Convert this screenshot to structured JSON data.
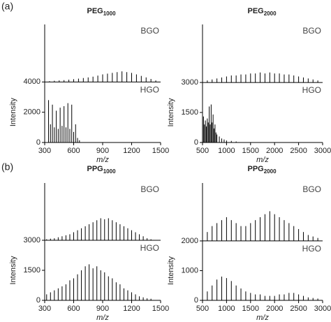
{
  "panel_labels": [
    "(a)",
    "(b)"
  ],
  "chart_data": [
    {
      "type": "spectrum",
      "title": "PEG",
      "title_subscript": "1000",
      "x_label": "m/z",
      "y_label": "Intensity",
      "xlim": [
        300,
        1500
      ],
      "xticks": [
        300,
        600,
        900,
        1200,
        1500
      ],
      "ylim": [
        0,
        7800
      ],
      "yticks": [
        0,
        2000,
        4000
      ],
      "series": [
        {
          "name": "BGO",
          "color": "#000000",
          "baseline": 4000,
          "x": [
            350,
            400,
            450,
            500,
            550,
            600,
            650,
            700,
            750,
            800,
            850,
            900,
            950,
            1000,
            1050,
            1100,
            1150,
            1200,
            1250,
            1300,
            1350,
            1400,
            1450
          ],
          "values": [
            4050,
            4080,
            4100,
            4120,
            4150,
            4180,
            4220,
            4260,
            4300,
            4350,
            4420,
            4500,
            4550,
            4600,
            4650,
            4700,
            4650,
            4600,
            4500,
            4400,
            4300,
            4200,
            4100
          ]
        },
        {
          "name": "HGO",
          "color": "#000000",
          "baseline": 0,
          "x": [
            340,
            360,
            380,
            400,
            420,
            440,
            460,
            480,
            500,
            520,
            540,
            560,
            580,
            600,
            620,
            640,
            660
          ],
          "values": [
            2800,
            1200,
            2500,
            1000,
            2100,
            900,
            2300,
            1100,
            2400,
            1000,
            2600,
            900,
            2500,
            700,
            1200,
            300,
            150
          ]
        }
      ]
    },
    {
      "type": "spectrum",
      "title": "PEG",
      "title_subscript": "2000",
      "x_label": "m/z",
      "y_label": "Intensity",
      "xlim": [
        500,
        3000
      ],
      "xticks": [
        500,
        1000,
        1500,
        2000,
        2500,
        3000
      ],
      "ylim": [
        0,
        5900
      ],
      "yticks": [
        0,
        1500,
        3000
      ],
      "series": [
        {
          "name": "BGO",
          "color": "#000000",
          "baseline": 3000,
          "x": [
            600,
            700,
            800,
            900,
            1000,
            1100,
            1200,
            1300,
            1400,
            1500,
            1600,
            1700,
            1800,
            1900,
            2000,
            2100,
            2200,
            2300,
            2400,
            2500,
            2600,
            2700,
            2800,
            2900
          ],
          "values": [
            3100,
            3150,
            3200,
            3250,
            3300,
            3350,
            3350,
            3400,
            3400,
            3450,
            3450,
            3500,
            3450,
            3500,
            3450,
            3450,
            3400,
            3400,
            3350,
            3300,
            3250,
            3200,
            3150,
            3100
          ]
        },
        {
          "name": "HGO",
          "color": "#000000",
          "baseline": 0,
          "x": [
            520,
            540,
            560,
            580,
            600,
            620,
            640,
            660,
            680,
            700,
            720,
            740,
            760,
            780,
            800,
            850,
            900,
            950,
            1000,
            1100,
            1200
          ],
          "values": [
            1300,
            900,
            1100,
            800,
            1200,
            1000,
            1800,
            900,
            1900,
            1000,
            1400,
            700,
            900,
            500,
            400,
            300,
            200,
            150,
            100,
            80,
            50
          ]
        }
      ]
    },
    {
      "type": "spectrum",
      "title": "PPG",
      "title_subscript": "1000",
      "x_label": "m/z",
      "y_label": "Intensity",
      "xlim": [
        300,
        1500
      ],
      "xticks": [
        300,
        600,
        900,
        1200,
        1500
      ],
      "ylim": [
        0,
        5860
      ],
      "yticks": [
        0,
        1500,
        3000
      ],
      "series": [
        {
          "name": "BGO",
          "color": "#000000",
          "baseline": 3000,
          "x": [
            320,
            360,
            400,
            440,
            480,
            520,
            560,
            600,
            640,
            680,
            720,
            760,
            800,
            840,
            880,
            920,
            960,
            1000,
            1040,
            1080,
            1120,
            1160,
            1200,
            1240,
            1280,
            1320,
            1360,
            1400
          ],
          "values": [
            3050,
            3080,
            3100,
            3150,
            3200,
            3250,
            3300,
            3400,
            3500,
            3600,
            3700,
            3800,
            3900,
            4000,
            4100,
            4050,
            4100,
            4000,
            3900,
            3800,
            3700,
            3600,
            3500,
            3400,
            3300,
            3200,
            3100,
            3050
          ]
        },
        {
          "name": "HGO",
          "color": "#000000",
          "baseline": 0,
          "x": [
            320,
            360,
            400,
            440,
            480,
            520,
            560,
            600,
            640,
            680,
            720,
            760,
            800,
            840,
            880,
            920,
            960,
            1000,
            1040,
            1080,
            1120,
            1160,
            1200,
            1240,
            1280,
            1320,
            1360,
            1400
          ],
          "values": [
            300,
            400,
            500,
            600,
            700,
            800,
            1000,
            1100,
            1300,
            1500,
            1700,
            1800,
            1600,
            1700,
            1500,
            1400,
            1200,
            1100,
            900,
            800,
            600,
            500,
            400,
            300,
            200,
            150,
            100,
            80
          ]
        }
      ]
    },
    {
      "type": "spectrum",
      "title": "PPG",
      "title_subscript": "2000",
      "x_label": "m/z",
      "y_label": "Intensity",
      "xlim": [
        500,
        3000
      ],
      "xticks": [
        500,
        1000,
        1500,
        2000,
        2500,
        3000
      ],
      "ylim": [
        0,
        3950
      ],
      "yticks": [
        0,
        1000,
        2000
      ],
      "series": [
        {
          "name": "BGO",
          "color": "#000000",
          "baseline": 2000,
          "x": [
            600,
            700,
            800,
            900,
            1000,
            1100,
            1200,
            1300,
            1400,
            1500,
            1600,
            1700,
            1800,
            1900,
            2000,
            2100,
            2200,
            2300,
            2400,
            2500,
            2600,
            2700,
            2800,
            2900
          ],
          "values": [
            2300,
            2500,
            2600,
            2700,
            2800,
            2700,
            2600,
            2500,
            2500,
            2600,
            2700,
            2800,
            2900,
            3000,
            2900,
            2800,
            2700,
            2600,
            2500,
            2400,
            2300,
            2200,
            2150,
            2100
          ]
        },
        {
          "name": "HGO",
          "color": "#000000",
          "baseline": 0,
          "x": [
            600,
            700,
            800,
            900,
            1000,
            1100,
            1200,
            1300,
            1400,
            1500,
            1600,
            1700,
            1800,
            1900,
            2000,
            2100,
            2200,
            2300,
            2400,
            2500,
            2600,
            2700,
            2800,
            2900
          ],
          "values": [
            300,
            500,
            700,
            800,
            750,
            650,
            500,
            400,
            300,
            250,
            200,
            200,
            150,
            150,
            150,
            200,
            200,
            250,
            250,
            200,
            150,
            100,
            80,
            60
          ]
        }
      ]
    }
  ]
}
